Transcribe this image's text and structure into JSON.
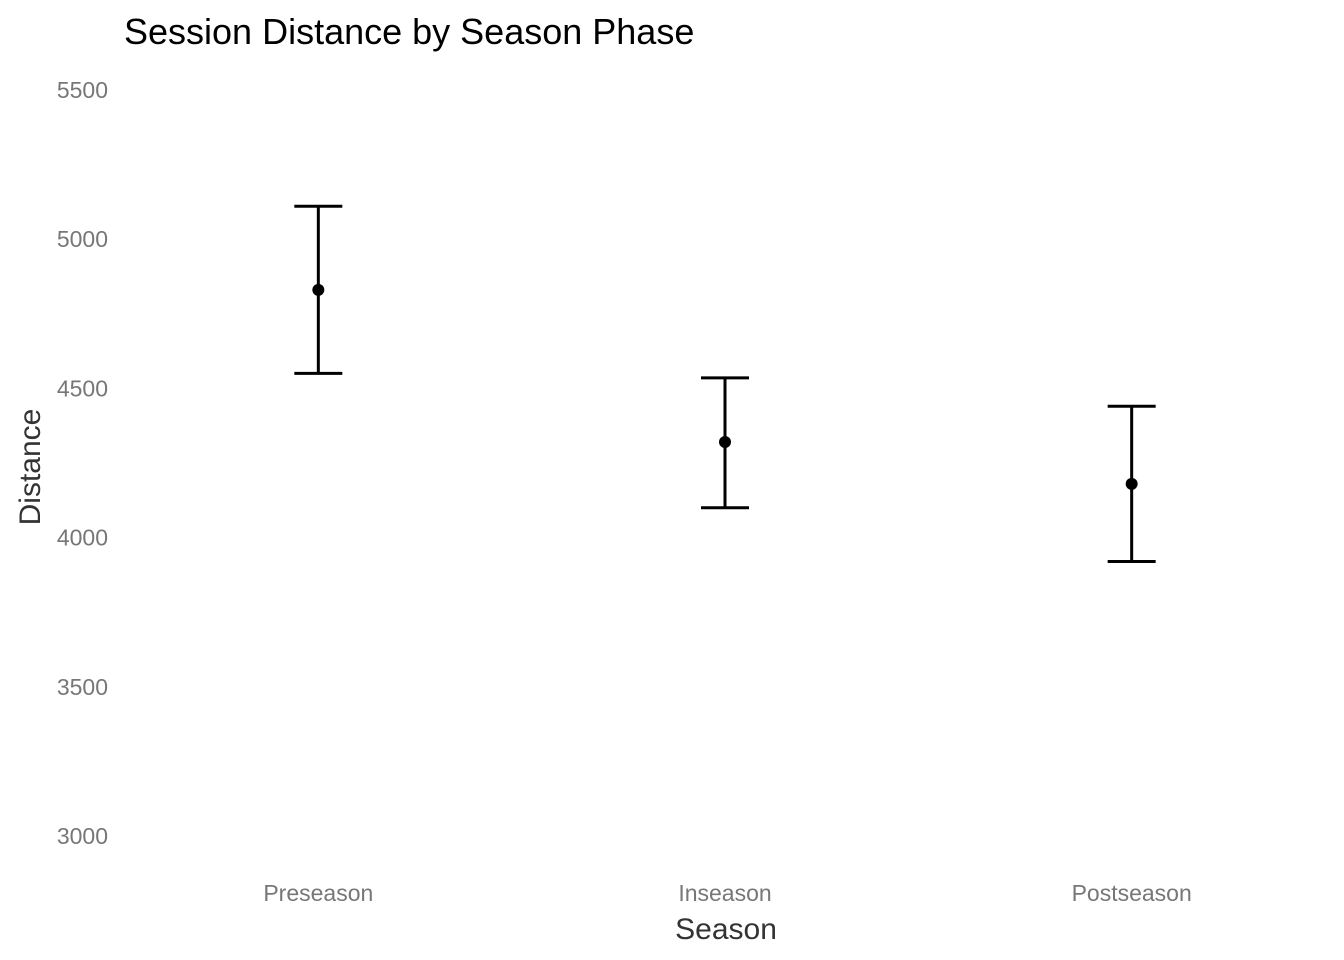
{
  "chart_data": {
    "type": "errorbar",
    "title": "Session Distance by Season Phase",
    "xlabel": "Season",
    "ylabel": "Distance",
    "categories": [
      "Preseason",
      "Inseason",
      "Postseason"
    ],
    "series": [
      {
        "mean": [
          4830,
          4320,
          4180
        ],
        "lower": [
          4550,
          4100,
          3920
        ],
        "upper": [
          5110,
          4535,
          4440
        ]
      }
    ],
    "yticks": [
      3000,
      3500,
      4000,
      4500,
      5000,
      5500
    ],
    "ytick_labels": [
      "3000",
      "3500",
      "4000",
      "4500",
      "5000",
      "5500"
    ],
    "ylim": [
      2970,
      5600
    ],
    "grid": false,
    "legend": "none",
    "colors": {
      "marks": "#000000",
      "tick_text": "#777777",
      "axis_title": "#333333",
      "title": "#000000"
    }
  }
}
